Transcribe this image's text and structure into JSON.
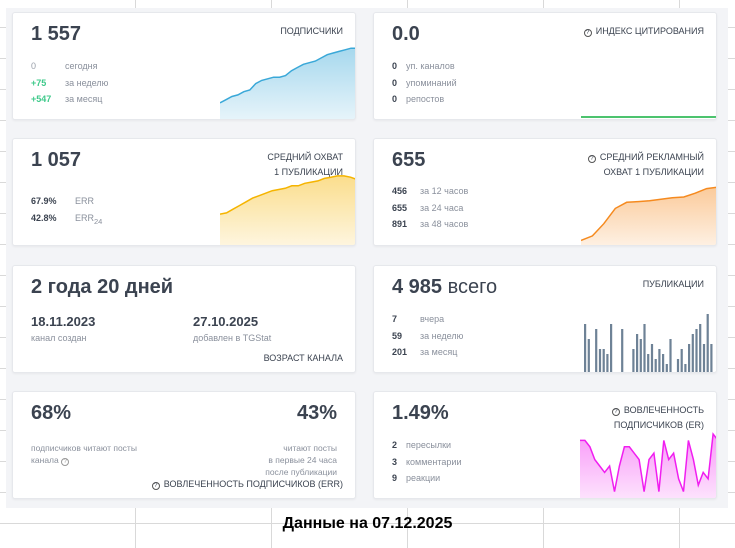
{
  "subscribers": {
    "value": "1 557",
    "title": "ПОДПИСЧИКИ",
    "rows": [
      {
        "n": "0",
        "l": "сегодня"
      },
      {
        "n": "+75",
        "l": "за неделю"
      },
      {
        "n": "+547",
        "l": "за месяц"
      }
    ],
    "color": "#3aa8d8",
    "trend": [
      10,
      12,
      14,
      15,
      17,
      18,
      22,
      24,
      25,
      26,
      26,
      27,
      30,
      32,
      34,
      35,
      36,
      38,
      40,
      41,
      42,
      43,
      44,
      44
    ]
  },
  "citation": {
    "value": "0.0",
    "title": "ИНДЕКС ЦИТИРОВАНИЯ",
    "rows": [
      {
        "n": "0",
        "l": "уп. каналов"
      },
      {
        "n": "0",
        "l": "упоминаний"
      },
      {
        "n": "0",
        "l": "репостов"
      }
    ],
    "color": "#4cc36e"
  },
  "reach": {
    "value": "1 057",
    "title1": "СРЕДНИЙ ОХВАТ",
    "title2": "1 ПУБЛИКАЦИИ",
    "rows": [
      {
        "n": "67.9%",
        "l": "ERR"
      },
      {
        "n": "42.8%",
        "l": "ERR",
        "sub": "24"
      }
    ],
    "color": "#f5b400",
    "trend": [
      5,
      6,
      9,
      12,
      15,
      18,
      20,
      22,
      24,
      25,
      26,
      28,
      28,
      30,
      31,
      32,
      34,
      35,
      36,
      36,
      35,
      33
    ]
  },
  "ad_reach": {
    "value": "655",
    "title1": "СРЕДНИЙ РЕКЛАМНЫЙ",
    "title2": "ОХВАТ 1 ПУБЛИКАЦИИ",
    "rows": [
      {
        "n": "456",
        "l": "за 12 часов"
      },
      {
        "n": "655",
        "l": "за 24 часа"
      },
      {
        "n": "891",
        "l": "за 48 часов"
      }
    ],
    "color": "#f58a1f",
    "trend": [
      3,
      6,
      14,
      24,
      28,
      28.5,
      29,
      30,
      31,
      31.5,
      34,
      37,
      38
    ]
  },
  "age": {
    "value": "2 года 20 дней",
    "created_date": "18.11.2023",
    "created_label": "канал создан",
    "added_date": "27.10.2025",
    "added_label": "добавлен в TGStat",
    "title": "ВОЗРАСТ КАНАЛА"
  },
  "posts": {
    "value": "4 985",
    "value_suffix": "всего",
    "title": "ПУБЛИКАЦИИ",
    "rows": [
      {
        "n": "7",
        "l": "вчера"
      },
      {
        "n": "59",
        "l": "за неделю"
      },
      {
        "n": "201",
        "l": "за месяц"
      }
    ],
    "color": "#6e8296",
    "bars": [
      10,
      7,
      0,
      9,
      5,
      5,
      4,
      10,
      0,
      0,
      9,
      0,
      0,
      5,
      8,
      7,
      10,
      4,
      6,
      3,
      5,
      4,
      2,
      7,
      0,
      3,
      5,
      2,
      6,
      8,
      9,
      10,
      6,
      12,
      6
    ]
  },
  "err": {
    "value_left": "68%",
    "label_left1": "подписчиков читают посты",
    "label_left2": "канала",
    "value_right": "43%",
    "label_right1": "читают посты",
    "label_right2": "в первые 24 часа",
    "label_right3": "после публикации",
    "title": "ВОВЛЕЧЕННОСТЬ ПОДПИСЧИКОВ (ERR)"
  },
  "er": {
    "value": "1.49%",
    "title1": "ВОВЛЕЧЕННОСТЬ",
    "title2": "ПОДПИСЧИКОВ (ER)",
    "rows": [
      {
        "n": "2",
        "l": "пересылки"
      },
      {
        "n": "3",
        "l": "комментарии"
      },
      {
        "n": "9",
        "l": "реакции"
      }
    ],
    "color": "#f01ef0",
    "trend": [
      9,
      9,
      8,
      6,
      5,
      4,
      5,
      1,
      5,
      8,
      8,
      7,
      6,
      1,
      6,
      7,
      1,
      9,
      6,
      7,
      3,
      1,
      9,
      6,
      2,
      4,
      3,
      10,
      9
    ]
  },
  "caption": "Данные на 07.12.2025"
}
